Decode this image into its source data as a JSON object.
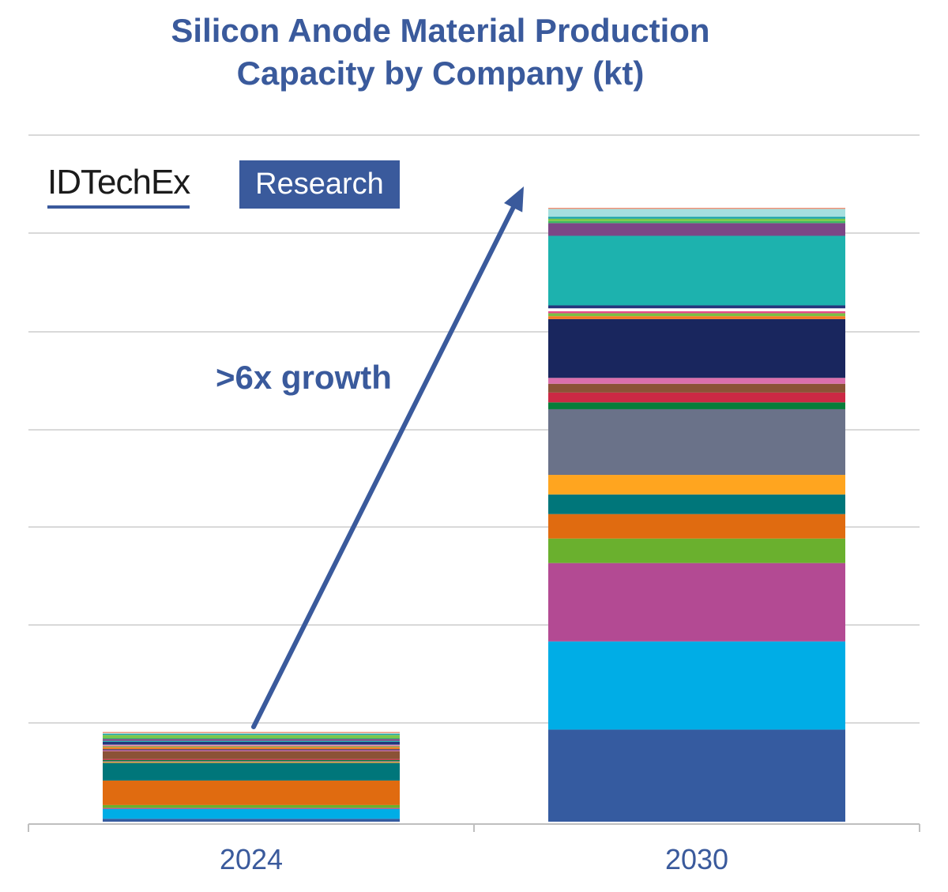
{
  "logo": {
    "wordmark": "IDTechEx",
    "tag": "Research"
  },
  "annotation": ">6x growth",
  "colors": {
    "title": "#3a5a9c",
    "gridline": "#d9d9d9",
    "axis": "#bfbfbf",
    "annotation": "#3a5a9c"
  },
  "chart_data": {
    "type": "bar",
    "stacked": true,
    "title": "Silicon Anode Material Production Capacity by Company (kt)",
    "title_lines": [
      "Silicon Anode Material Production",
      "Capacity by Company (kt)"
    ],
    "xlabel": "",
    "ylabel": "",
    "categories": [
      "2024",
      "2030"
    ],
    "y_ticks_labeled": false,
    "grid": true,
    "legend": "none",
    "segment_unit": "relative units (unlabeled axis)",
    "series": [
      {
        "color": "#355ba0",
        "values": [
          0.3,
          9.4
        ]
      },
      {
        "color": "#00ade6",
        "values": [
          1.0,
          9.0
        ]
      },
      {
        "color": "#b34a93",
        "values": [
          0.1,
          8.0
        ]
      },
      {
        "color": "#6ab02e",
        "values": [
          0.3,
          2.5
        ]
      },
      {
        "color": "#e06b10",
        "values": [
          2.5,
          2.5
        ]
      },
      {
        "color": "#00767a",
        "values": [
          1.8,
          2.0
        ]
      },
      {
        "color": "#ffa51f",
        "values": [
          0.1,
          2.0
        ]
      },
      {
        "color": "#6a7289",
        "values": [
          0.1,
          6.7
        ]
      },
      {
        "color": "#077d3a",
        "values": [
          0.1,
          0.7
        ]
      },
      {
        "color": "#cc2944",
        "values": [
          0.1,
          1.0
        ]
      },
      {
        "color": "#8b5236",
        "values": [
          0.8,
          0.9
        ]
      },
      {
        "color": "#db6fac",
        "values": [
          0.1,
          0.6
        ]
      },
      {
        "color": "#19265e",
        "values": [
          0.1,
          6.0
        ]
      },
      {
        "color": "#f47a25",
        "values": [
          0.2,
          0.3
        ]
      },
      {
        "color": "#7ac143",
        "values": [
          0.1,
          0.3
        ]
      },
      {
        "color": "#e84b8a",
        "values": [
          0.1,
          0.2
        ]
      },
      {
        "color": "#ffffff",
        "values": [
          0.05,
          0.3
        ]
      },
      {
        "color": "#26357c",
        "values": [
          0.3,
          0.3
        ]
      },
      {
        "color": "#1db2ae",
        "values": [
          0.1,
          7.1
        ]
      },
      {
        "color": "#7c4686",
        "values": [
          0.2,
          1.3
        ]
      },
      {
        "color": "#3cba62",
        "values": [
          0.1,
          0.2
        ]
      },
      {
        "color": "#7dc74a",
        "values": [
          0.3,
          0.25
        ]
      },
      {
        "color": "#17a2a7",
        "values": [
          0.1,
          0.2
        ]
      },
      {
        "color": "#a5dfdf",
        "values": [
          0.1,
          0.8
        ]
      },
      {
        "color": "#f07f5f",
        "values": [
          0.1,
          0.1
        ]
      }
    ]
  }
}
